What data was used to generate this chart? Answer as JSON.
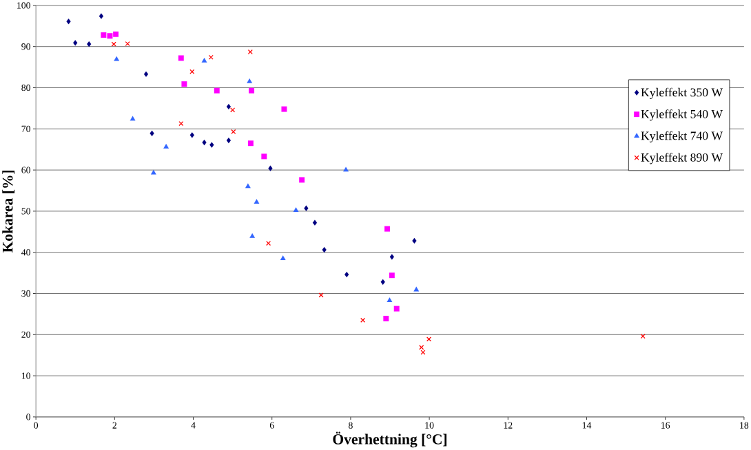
{
  "chart_data": {
    "type": "scatter",
    "xlabel": "Överhettning [°C]",
    "ylabel": "Kokarea [%]",
    "xlim": [
      0,
      18
    ],
    "xticks": [
      0,
      2,
      4,
      6,
      8,
      10,
      12,
      14,
      16,
      18
    ],
    "ylim": [
      0,
      100
    ],
    "yticks": [
      0,
      10,
      20,
      30,
      40,
      50,
      60,
      70,
      80,
      90,
      100
    ],
    "grid": "y",
    "legend": "right",
    "series": [
      {
        "name": "Kyleffekt 350 W",
        "color": "#000080",
        "marker": "diamond",
        "x": [
          0.83,
          1.66,
          1.0,
          1.35,
          2.8,
          2.95,
          3.97,
          4.28,
          4.47,
          4.9,
          4.9,
          5.96,
          6.87,
          7.09,
          7.33,
          7.9,
          8.82,
          9.05,
          9.62
        ],
        "values": [
          96.1,
          97.4,
          90.9,
          90.6,
          83.3,
          68.9,
          68.5,
          66.7,
          66.1,
          75.4,
          67.2,
          60.4,
          50.7,
          47.2,
          40.6,
          34.6,
          32.8,
          38.9,
          42.8
        ]
      },
      {
        "name": "Kyleffekt 540 W",
        "color": "#ff00ff",
        "marker": "square",
        "x": [
          1.72,
          1.88,
          2.03,
          3.69,
          3.77,
          4.6,
          5.48,
          6.31,
          5.46,
          5.8,
          6.76,
          8.93,
          9.05,
          9.17,
          8.9
        ],
        "values": [
          92.8,
          92.6,
          93.0,
          87.2,
          80.9,
          79.3,
          79.3,
          74.8,
          66.5,
          63.3,
          57.6,
          45.7,
          34.4,
          26.3,
          23.9
        ]
      },
      {
        "name": "Kyleffekt 740 W",
        "color": "#3366ff",
        "marker": "triangle",
        "x": [
          2.05,
          2.46,
          2.99,
          3.31,
          4.28,
          5.43,
          5.39,
          5.61,
          6.61,
          5.5,
          6.28,
          7.88,
          8.99,
          9.67
        ],
        "values": [
          86.9,
          72.4,
          59.3,
          65.6,
          86.5,
          81.5,
          56.0,
          52.2,
          50.2,
          43.9,
          38.5,
          60.0,
          28.3,
          30.9
        ]
      },
      {
        "name": "Kyleffekt 890 W",
        "color": "#ff0000",
        "marker": "cross",
        "x": [
          1.98,
          2.33,
          3.69,
          3.97,
          4.45,
          5.45,
          5.0,
          5.02,
          5.91,
          7.25,
          8.31,
          9.99,
          9.8,
          9.84,
          15.43
        ],
        "values": [
          90.6,
          90.7,
          71.3,
          83.9,
          87.4,
          88.7,
          74.6,
          69.3,
          42.2,
          29.6,
          23.5,
          18.9,
          16.9,
          15.7,
          19.6
        ]
      }
    ]
  }
}
